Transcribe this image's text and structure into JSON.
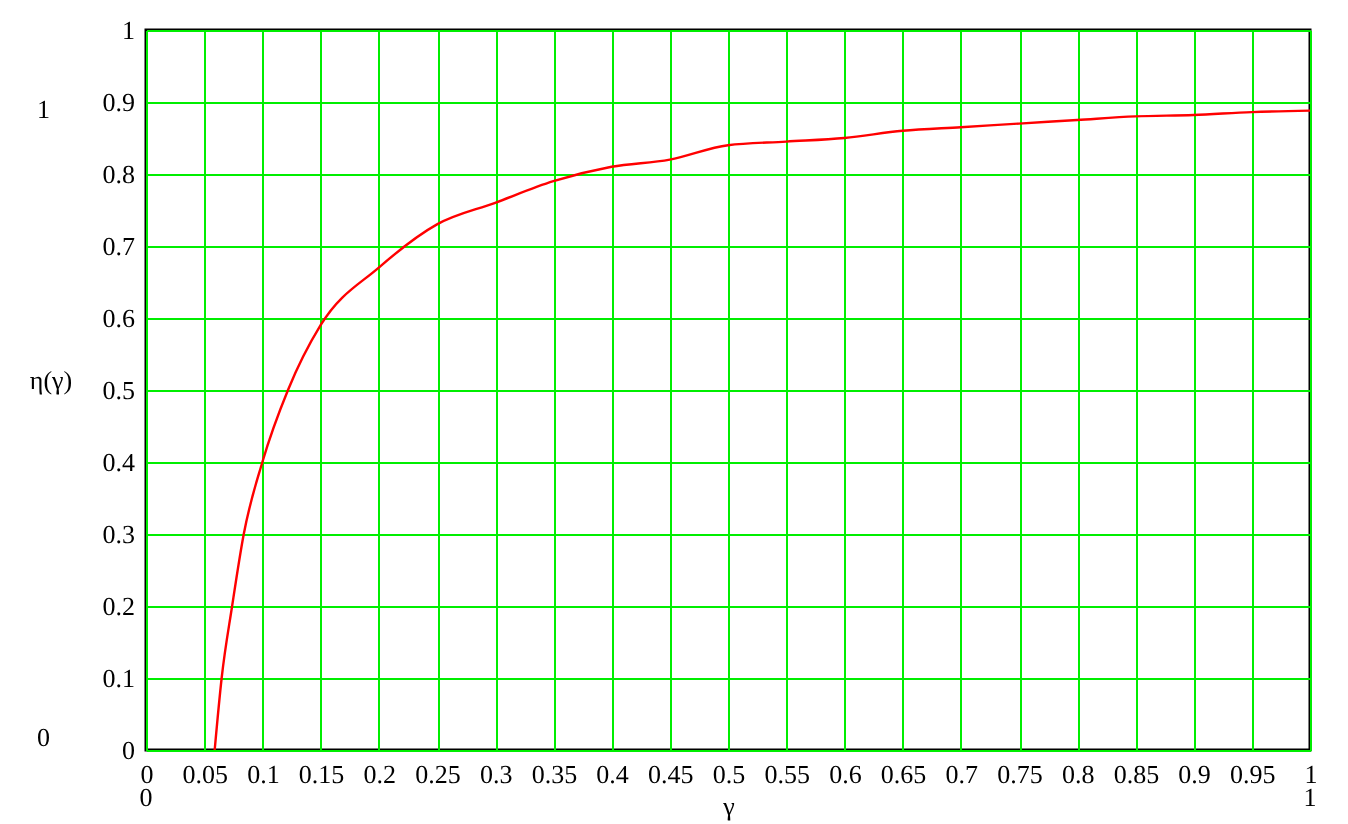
{
  "chart_data": {
    "type": "line",
    "xlabel": "γ",
    "ylabel": "η(γ)",
    "x": [
      0.059,
      0.065,
      0.074,
      0.084,
      0.1,
      0.122,
      0.15,
      0.2,
      0.25,
      0.3,
      0.35,
      0.4,
      0.45,
      0.5,
      0.55,
      0.6,
      0.65,
      0.7,
      0.75,
      0.8,
      0.85,
      0.9,
      0.95,
      1
    ],
    "series": [
      {
        "color": "#ff0000",
        "values": [
          0,
          0.1,
          0.2,
          0.3,
          0.4,
          0.5,
          0.59,
          0.67,
          0.73,
          0.76,
          0.79,
          0.81,
          0.82,
          0.84,
          0.845,
          0.85,
          0.86,
          0.865,
          0.87,
          0.875,
          0.88,
          0.882,
          0.886,
          0.888
        ]
      }
    ],
    "xlim": [
      0,
      1
    ],
    "ylim": [
      0,
      1
    ],
    "xticks": [
      0,
      0.05,
      0.1,
      0.15,
      0.2,
      0.25,
      0.3,
      0.35,
      0.4,
      0.45,
      0.5,
      0.55,
      0.6,
      0.65,
      0.7,
      0.75,
      0.8,
      0.85,
      0.9,
      0.95,
      1
    ],
    "yticks": [
      0,
      0.1,
      0.2,
      0.3,
      0.4,
      0.5,
      0.6,
      0.7,
      0.8,
      0.9,
      1
    ],
    "grid": true,
    "marker": "none",
    "line_style": "solid",
    "annotations": [
      "1",
      "0",
      "0",
      "1"
    ]
  }
}
